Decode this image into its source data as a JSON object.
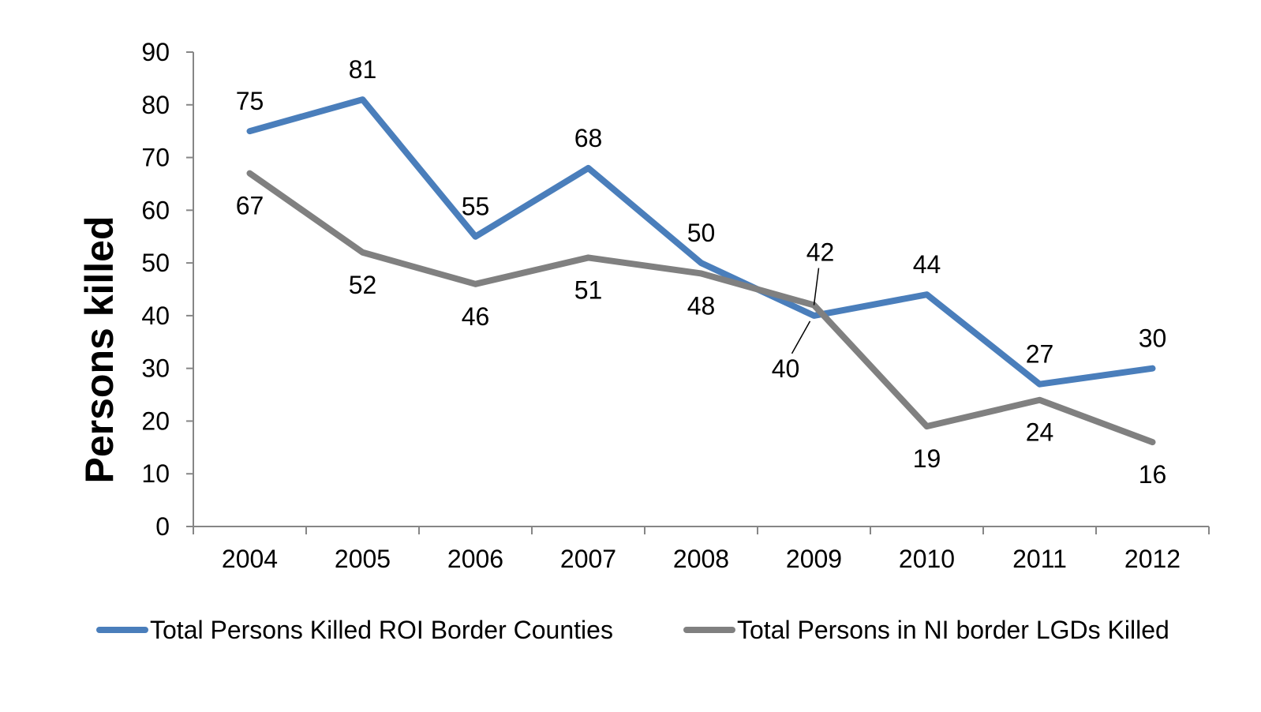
{
  "chart_data": {
    "type": "line",
    "title": "",
    "xlabel": "",
    "ylabel": "Persons killed",
    "ylim": [
      0,
      90
    ],
    "yticks": [
      0,
      10,
      20,
      30,
      40,
      50,
      60,
      70,
      80,
      90
    ],
    "categories": [
      "2004",
      "2005",
      "2006",
      "2007",
      "2008",
      "2009",
      "2010",
      "2011",
      "2012"
    ],
    "grid": false,
    "legend_position": "bottom",
    "series": [
      {
        "name": "Total Persons Killed ROI Border Counties",
        "color": "#4A7EBB",
        "values": [
          75,
          81,
          55,
          68,
          50,
          40,
          44,
          27,
          30
        ],
        "labels": [
          "75",
          "81",
          "55",
          "68",
          "50",
          "40",
          "44",
          "27",
          "30"
        ]
      },
      {
        "name": "Total Persons in NI border LGDs Killed",
        "color": "#808080",
        "values": [
          67,
          52,
          46,
          51,
          48,
          42,
          19,
          24,
          16
        ],
        "labels": [
          "67",
          "52",
          "46",
          "51",
          "48",
          "42",
          "19",
          "24",
          "16"
        ]
      }
    ]
  }
}
